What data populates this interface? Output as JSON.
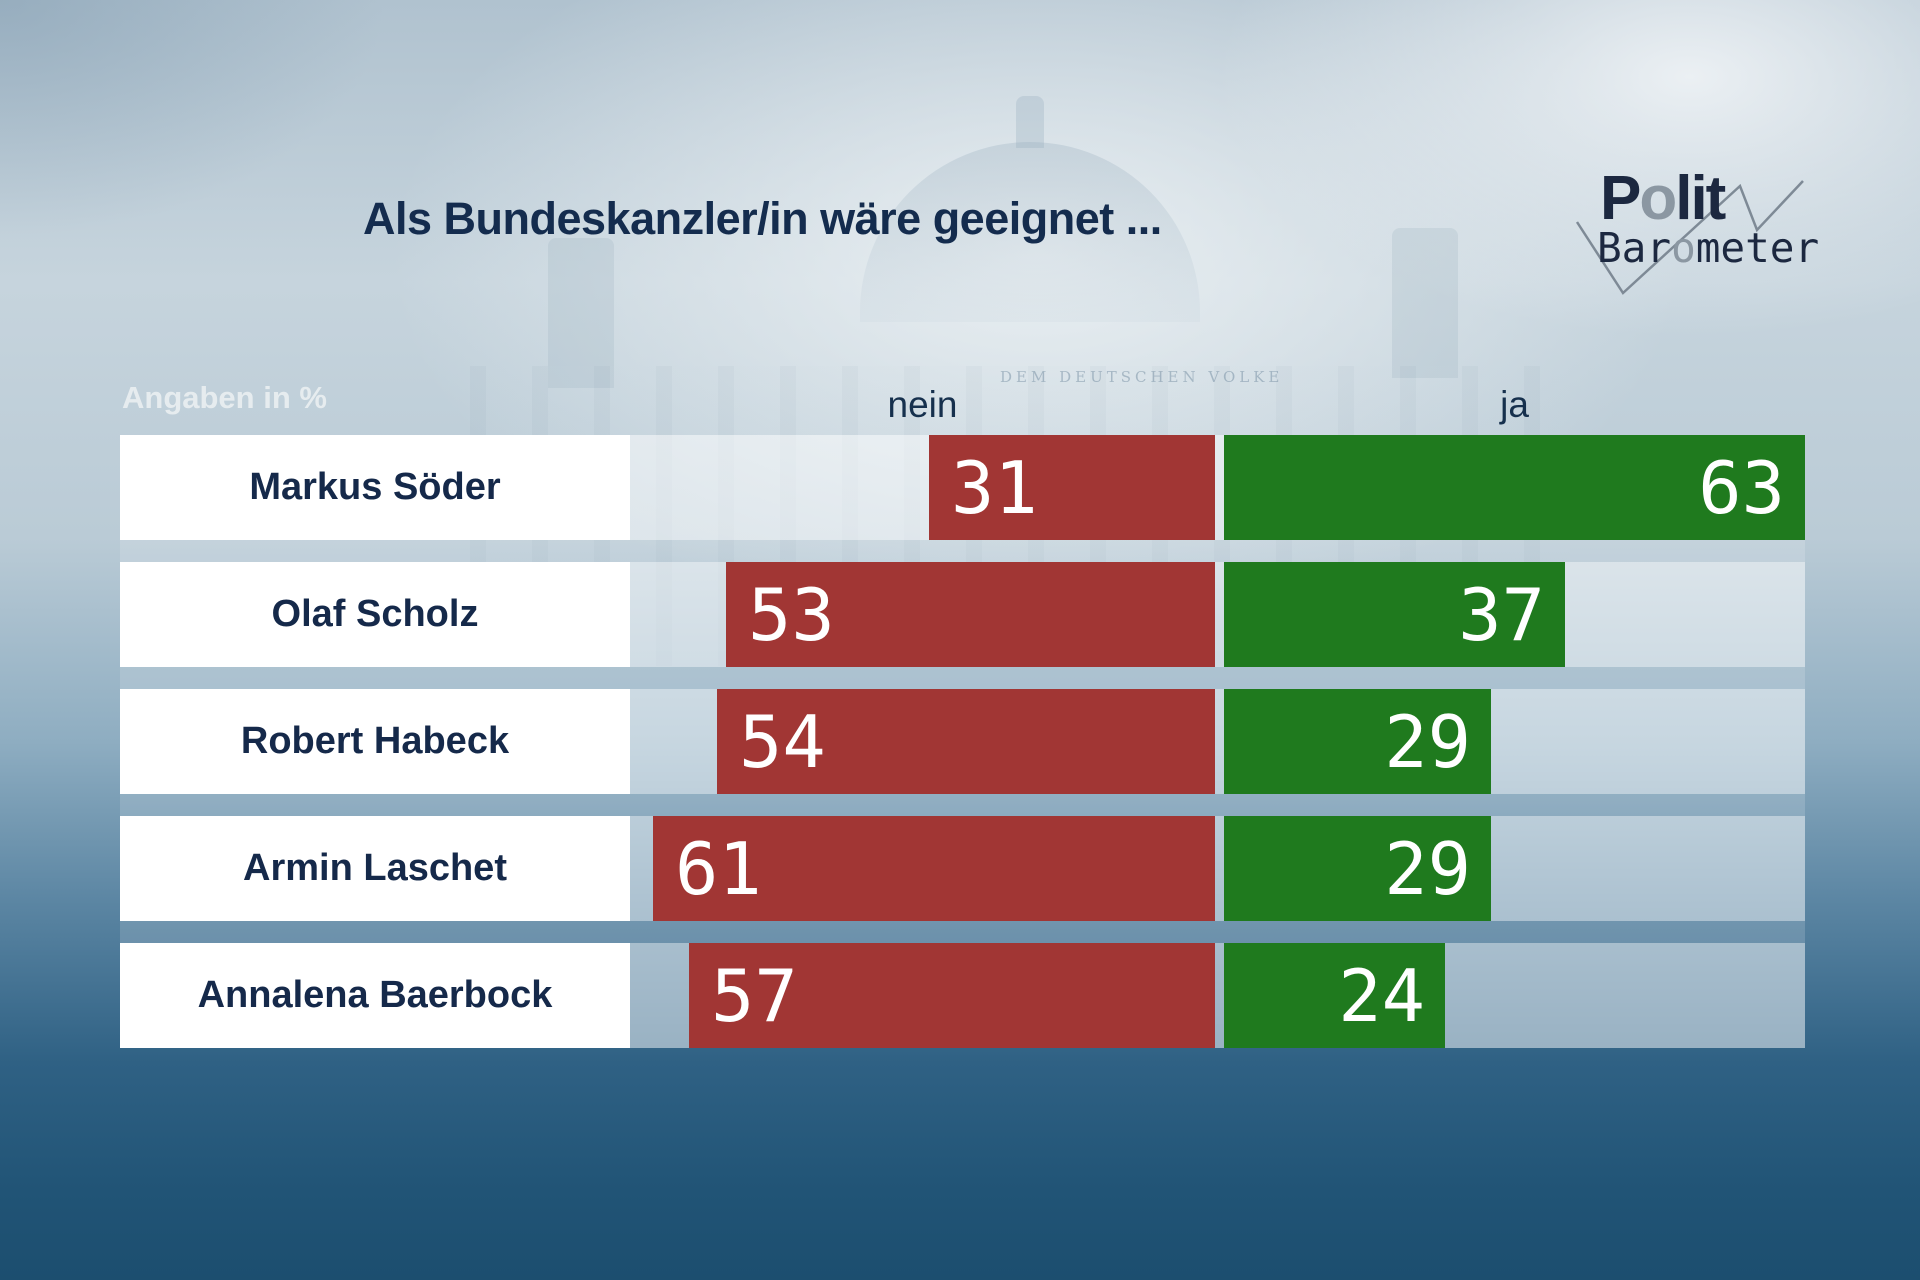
{
  "chart_data": {
    "type": "bar",
    "orientation": "horizontal",
    "title": "Als Bundeskanzler/in wäre geeignet ...",
    "units_label": "Angaben in %",
    "categories": [
      "Markus Söder",
      "Olaf Scholz",
      "Robert Habeck",
      "Armin Laschet",
      "Annalena Baerbock"
    ],
    "series": [
      {
        "name": "nein",
        "color": "#a13634",
        "values": [
          31,
          53,
          54,
          61,
          57
        ]
      },
      {
        "name": "ja",
        "color": "#1f7a1e",
        "values": [
          63,
          37,
          29,
          29,
          24
        ]
      }
    ],
    "value_range": [
      0,
      63
    ],
    "grid": false,
    "legend_position": "column-headers-above-bars"
  },
  "logo": {
    "polit_parts": [
      "P",
      "o",
      "lit"
    ],
    "barometer_parts": [
      "Bar",
      "o",
      "meter"
    ]
  },
  "background": {
    "inscription": "DEM DEUTSCHEN VOLKE"
  },
  "colors": {
    "nein_bar": "#a13634",
    "ja_bar": "#1f7a1e",
    "title_text": "#142c4e",
    "name_text": "#15294a",
    "bar_value_text": "#ffffff",
    "units_text": "#e6ecef",
    "logo_navy": "#1c2840",
    "logo_gray": "#8b97a2",
    "background_bottom": "#1c4e6f"
  }
}
